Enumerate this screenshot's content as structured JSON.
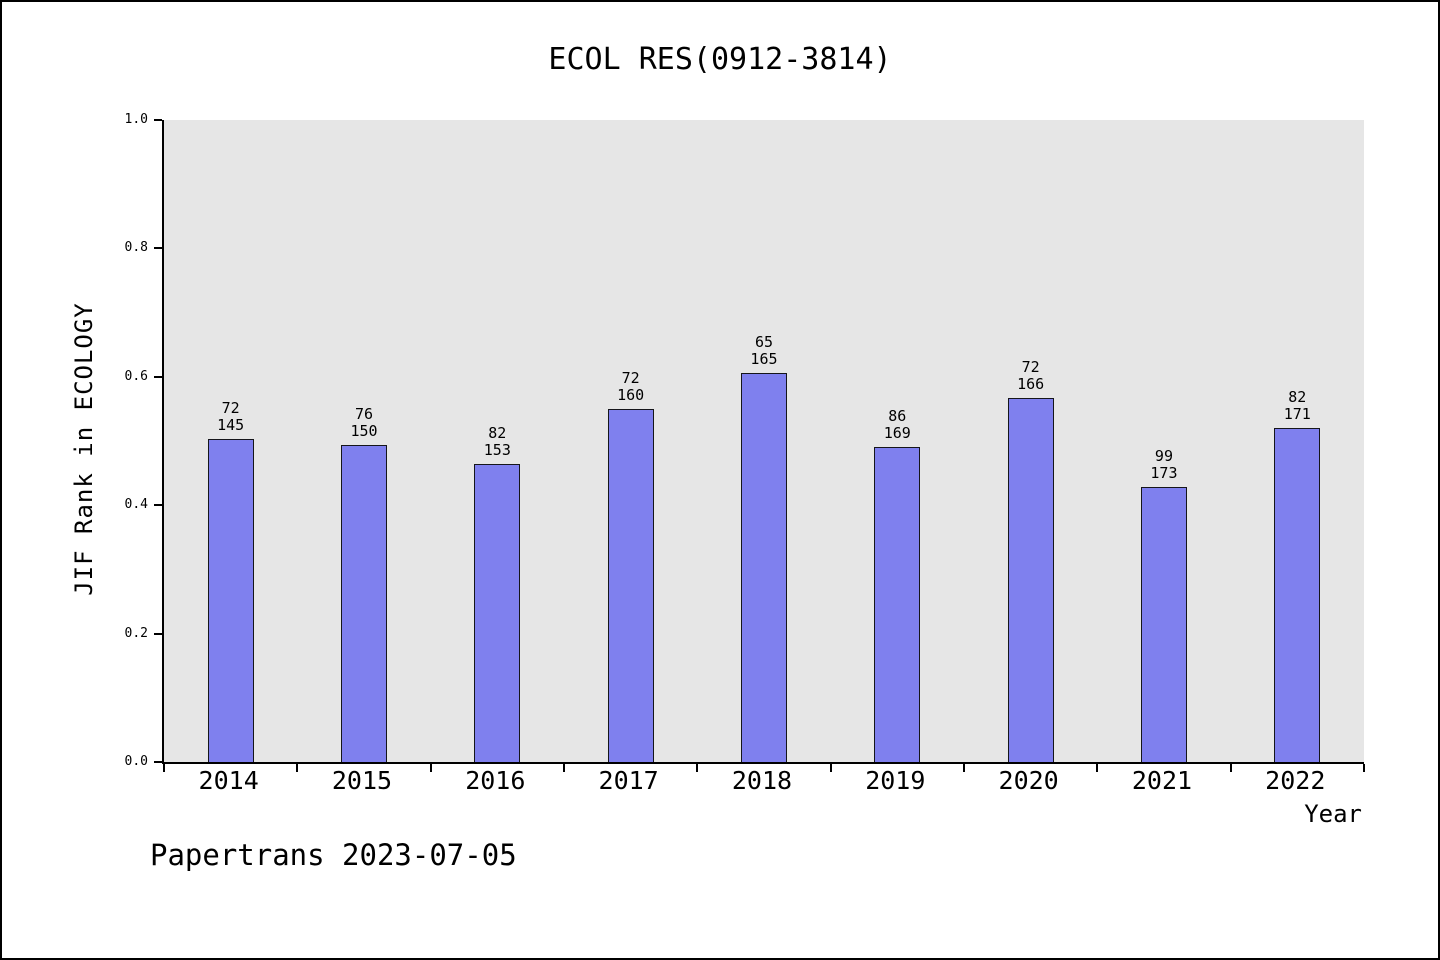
{
  "footer": {
    "text": "Papertrans 2023-07-05"
  },
  "chart_data": {
    "type": "bar",
    "title": "ECOL RES(0912-3814)",
    "xlabel": "Year",
    "ylabel": "JIF Rank in ECOLOGY",
    "ylim": [
      0.0,
      1.0
    ],
    "yticks": [
      "0.0",
      "0.2",
      "0.4",
      "0.6",
      "0.8",
      "1.0"
    ],
    "grid": "off",
    "legend": "none",
    "plot_bg": "#e6e6e6",
    "bar_color": "#7f80ee",
    "categories": [
      "2014",
      "2015",
      "2016",
      "2017",
      "2018",
      "2019",
      "2020",
      "2021",
      "2022"
    ],
    "bars": [
      {
        "year": "2014",
        "rank": 72,
        "total": 145,
        "value": 0.5034
      },
      {
        "year": "2015",
        "rank": 76,
        "total": 150,
        "value": 0.4933
      },
      {
        "year": "2016",
        "rank": 82,
        "total": 153,
        "value": 0.4641
      },
      {
        "year": "2017",
        "rank": 72,
        "total": 160,
        "value": 0.55
      },
      {
        "year": "2018",
        "rank": 65,
        "total": 165,
        "value": 0.6061
      },
      {
        "year": "2019",
        "rank": 86,
        "total": 169,
        "value": 0.4911
      },
      {
        "year": "2020",
        "rank": 72,
        "total": 166,
        "value": 0.5663
      },
      {
        "year": "2021",
        "rank": 99,
        "total": 173,
        "value": 0.4277
      },
      {
        "year": "2022",
        "rank": 82,
        "total": 171,
        "value": 0.5205
      }
    ]
  }
}
